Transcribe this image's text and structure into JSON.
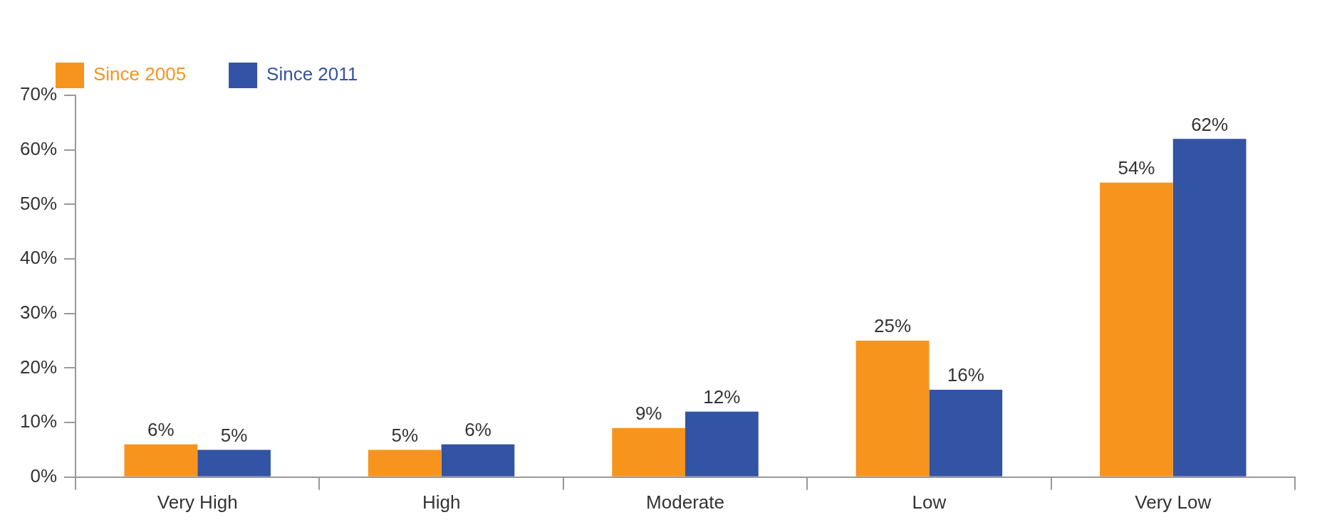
{
  "chart_data": {
    "type": "bar",
    "categories": [
      "Very High",
      "High",
      "Moderate",
      "Low",
      "Very Low"
    ],
    "series": [
      {
        "name": "Since 2005",
        "color": "#f7941d",
        "values": [
          6,
          5,
          9,
          25,
          54
        ],
        "value_labels": [
          "6%",
          "5%",
          "9%",
          "25%",
          "54%"
        ]
      },
      {
        "name": "Since 2011",
        "color": "#3353a4",
        "values": [
          5,
          6,
          12,
          16,
          62
        ],
        "value_labels": [
          "5%",
          "6%",
          "12%",
          "16%",
          "62%"
        ]
      }
    ],
    "ylim": [
      0,
      70
    ],
    "yticks": [
      {
        "value": 0,
        "label": "0%"
      },
      {
        "value": 10,
        "label": "10%"
      },
      {
        "value": 20,
        "label": "20%"
      },
      {
        "value": 30,
        "label": "30%"
      },
      {
        "value": 40,
        "label": "40%"
      },
      {
        "value": 50,
        "label": "50%"
      },
      {
        "value": 60,
        "label": "60%"
      },
      {
        "value": 70,
        "label": "70%"
      }
    ],
    "grid": false,
    "legend": "top left"
  }
}
